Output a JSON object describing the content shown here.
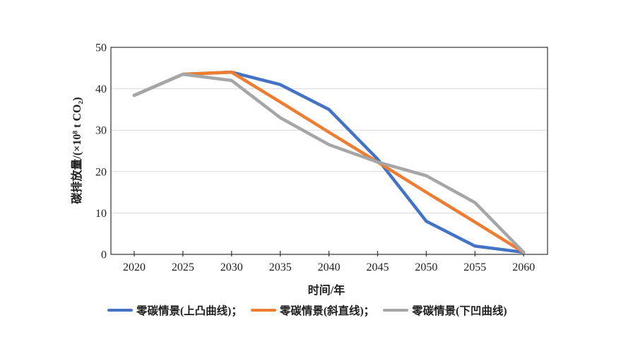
{
  "chart_data": {
    "type": "line",
    "title": "",
    "xlabel": "时间/年",
    "ylabel": "碳排放量/(×10⁸ t CO₂)",
    "categories": [
      "2020",
      "2025",
      "2030",
      "2035",
      "2040",
      "2045",
      "2050",
      "2055",
      "2060"
    ],
    "series": [
      {
        "name": "零碳情景(上凸曲线)",
        "legend_label": "零碳情景(上凸曲线)；",
        "color": "#4472C4",
        "values": [
          38.4,
          43.5,
          44,
          41,
          35,
          23,
          8,
          2,
          0.5
        ]
      },
      {
        "name": "零碳情景(斜直线)",
        "legend_label": "零碳情景(斜直线)；",
        "color": "#ED7D31",
        "values": [
          38.4,
          43.5,
          44,
          36.8,
          29.5,
          22.3,
          15,
          7.8,
          0.5
        ]
      },
      {
        "name": "零碳情景(下凹曲线)",
        "legend_label": "零碳情景(下凹曲线)",
        "color": "#A6A6A6",
        "values": [
          38.4,
          43.5,
          42,
          33,
          26.5,
          22.3,
          19,
          12.5,
          0.5
        ]
      }
    ],
    "ylim": [
      0,
      50
    ],
    "y_ticks": [
      0,
      10,
      20,
      30,
      40,
      50
    ],
    "grid": "horizontal",
    "legend_position": "bottom"
  },
  "colors": {
    "axis": "#404040",
    "gridline": "#d9d9d9",
    "text": "#1f1f1f",
    "background": "#ffffff"
  }
}
